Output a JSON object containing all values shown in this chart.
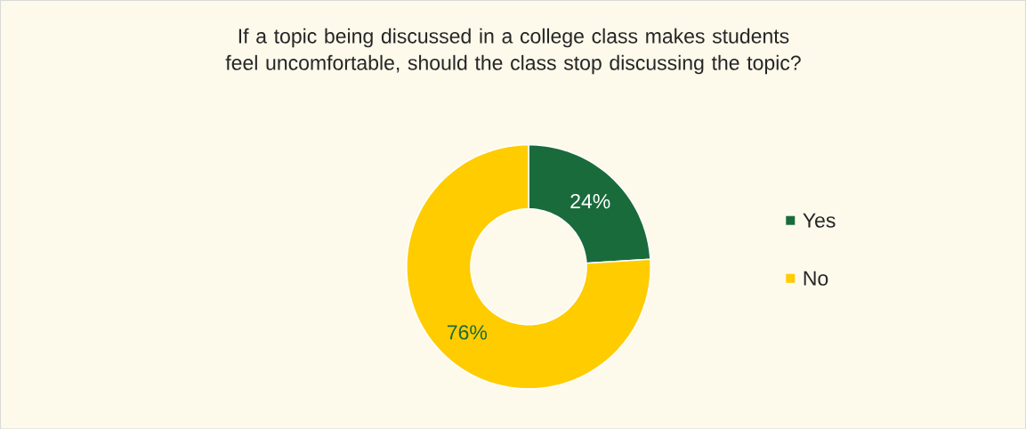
{
  "chart_data": {
    "type": "donut",
    "title": "If a topic being discussed in a college class makes students feel uncomfortable, should the class stop discussing the topic?",
    "categories": [
      "Yes",
      "No"
    ],
    "values": [
      24,
      76
    ],
    "value_labels": [
      "24%",
      "76%"
    ],
    "colors": [
      "#1a6b3c",
      "#ffcc00"
    ],
    "legend": "right"
  }
}
